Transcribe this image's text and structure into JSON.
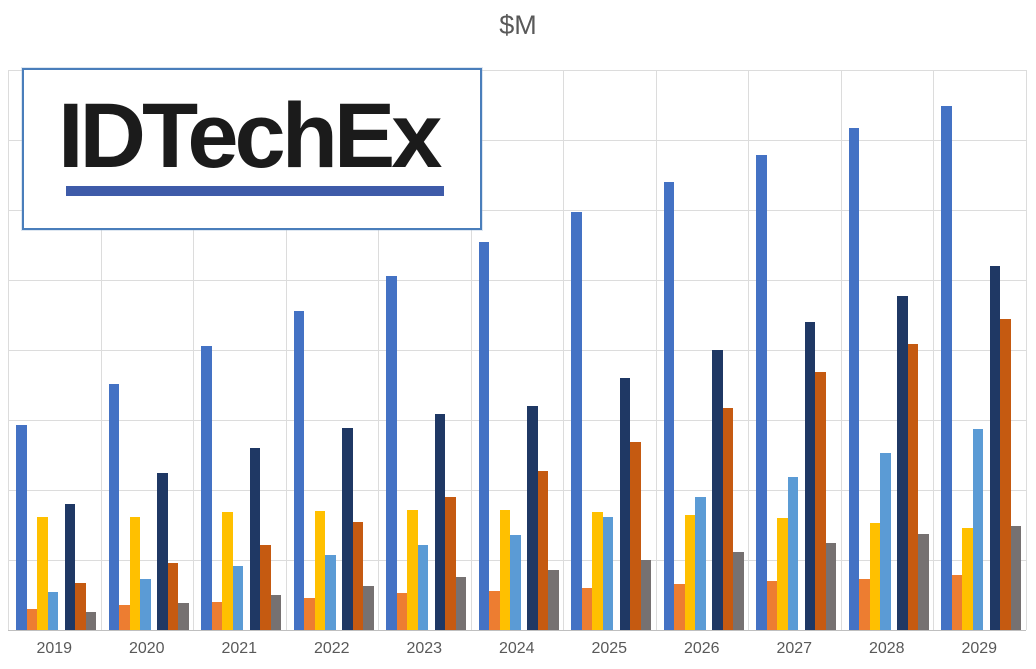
{
  "title": "$M",
  "logo": {
    "text": "IDTechEx"
  },
  "colors": {
    "blue": "#4472C4",
    "orange": "#ED7D31",
    "yellow": "#FFC000",
    "light_blue": "#5B9BD5",
    "navy": "#1F3864",
    "brown": "#C55A11",
    "gray": "#767171",
    "gridline": "#DCDCDC",
    "axis": "#BFBFBF",
    "label": "#595959",
    "logo_underline": "#3E5BA9",
    "logo_border": "#4A7EBB"
  },
  "chart_data": {
    "type": "bar",
    "title": "$M",
    "xlabel": "",
    "ylabel": "",
    "y_axis_labels": "none",
    "legend": "none",
    "grid": "on",
    "ylim": [
      0,
      8
    ],
    "gridline_step": 1,
    "categories": [
      "2019",
      "2020",
      "2021",
      "2022",
      "2023",
      "2024",
      "2025",
      "2026",
      "2027",
      "2028",
      "2029"
    ],
    "series": [
      {
        "name": "series-blue",
        "color_key": "blue",
        "values": [
          2.93,
          3.51,
          4.06,
          4.56,
          5.06,
          5.54,
          5.97,
          6.4,
          6.79,
          7.17,
          7.49
        ]
      },
      {
        "name": "series-orange",
        "color_key": "orange",
        "values": [
          0.3,
          0.36,
          0.4,
          0.46,
          0.53,
          0.56,
          0.6,
          0.66,
          0.7,
          0.73,
          0.79
        ]
      },
      {
        "name": "series-yellow",
        "color_key": "yellow",
        "values": [
          1.61,
          1.61,
          1.69,
          1.7,
          1.71,
          1.71,
          1.69,
          1.64,
          1.6,
          1.53,
          1.46
        ]
      },
      {
        "name": "series-light-blue",
        "color_key": "light_blue",
        "values": [
          0.54,
          0.73,
          0.91,
          1.07,
          1.21,
          1.36,
          1.61,
          1.9,
          2.19,
          2.53,
          2.87
        ]
      },
      {
        "name": "series-navy",
        "color_key": "navy",
        "values": [
          1.8,
          2.24,
          2.6,
          2.89,
          3.09,
          3.2,
          3.6,
          4.0,
          4.4,
          4.77,
          5.2
        ]
      },
      {
        "name": "series-dark-orange",
        "color_key": "brown",
        "values": [
          0.67,
          0.96,
          1.21,
          1.54,
          1.9,
          2.27,
          2.69,
          3.17,
          3.69,
          4.09,
          4.44
        ]
      },
      {
        "name": "series-gray",
        "color_key": "gray",
        "values": [
          0.26,
          0.39,
          0.5,
          0.63,
          0.76,
          0.86,
          1.0,
          1.11,
          1.24,
          1.37,
          1.49
        ]
      }
    ]
  }
}
